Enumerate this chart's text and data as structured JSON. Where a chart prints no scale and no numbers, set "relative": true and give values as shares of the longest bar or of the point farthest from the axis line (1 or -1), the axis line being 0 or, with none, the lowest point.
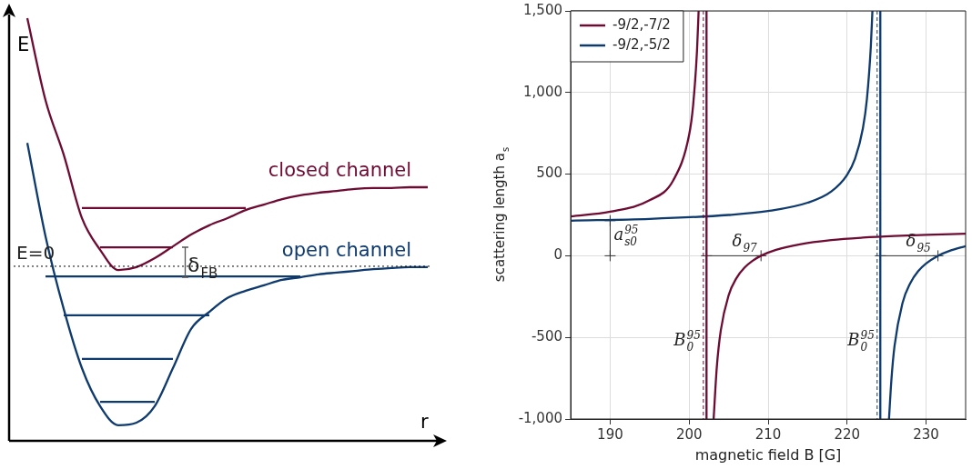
{
  "chart_data": [
    {
      "type": "line",
      "relative": true,
      "xlabel": "r",
      "ylabel": "E",
      "legend": false,
      "categories": [
        null,
        null,
        null,
        null,
        null,
        null,
        null,
        null,
        null,
        null,
        null,
        null,
        null,
        null,
        null,
        null,
        null,
        null,
        null,
        null,
        null,
        null,
        null,
        null,
        null
      ],
      "series": [
        {
          "name": "closed channel",
          "color": "#6e0b32",
          "values": [
            null,
            1.0,
            0.806,
            0.677,
            0.527,
            0.452,
            0.404,
            0.411,
            0.432,
            0.46,
            0.488,
            0.51,
            0.527,
            0.546,
            0.559,
            0.572,
            0.581,
            0.587,
            0.591,
            0.596,
            0.598,
            0.598,
            0.6,
            0.6,
            null
          ]
        },
        {
          "name": "open channel",
          "color": "#0e3a6e",
          "values": [
            null,
            0.705,
            0.484,
            0.312,
            0.172,
            0.082,
            0.037,
            0.043,
            0.082,
            0.172,
            0.265,
            0.305,
            0.338,
            0.355,
            0.368,
            0.381,
            0.387,
            0.394,
            0.398,
            0.402,
            0.406,
            0.409,
            0.411,
            0.411,
            null
          ]
        },
        {
          "color": "#6e0b32",
          "values": [
            null,
            null,
            null,
            null,
            0.551,
            0.551,
            0.551,
            0.551,
            0.551,
            0.551,
            0.551,
            0.551,
            0.551,
            0.551,
            null,
            null,
            null,
            null,
            null,
            null,
            null,
            null,
            null,
            null,
            null
          ]
        },
        {
          "color": "#6e0b32",
          "values": [
            null,
            null,
            null,
            null,
            null,
            0.458,
            0.458,
            0.458,
            0.458,
            0.458,
            null,
            null,
            null,
            null,
            null,
            null,
            null,
            null,
            null,
            null,
            null,
            null,
            null,
            null,
            null
          ]
        },
        {
          "color": "#0e3a6e",
          "values": [
            null,
            null,
            0.389,
            0.389,
            0.389,
            0.389,
            0.389,
            0.389,
            0.389,
            0.389,
            0.389,
            0.389,
            0.389,
            0.389,
            0.389,
            0.389,
            0.389,
            null,
            null,
            null,
            null,
            null,
            null,
            null,
            null
          ]
        },
        {
          "color": "#0e3a6e",
          "values": [
            null,
            null,
            null,
            0.297,
            0.297,
            0.297,
            0.297,
            0.297,
            0.297,
            0.297,
            0.297,
            0.297,
            null,
            null,
            null,
            null,
            null,
            null,
            null,
            null,
            null,
            null,
            null,
            null,
            null
          ]
        },
        {
          "color": "#0e3a6e",
          "values": [
            null,
            null,
            null,
            null,
            0.194,
            0.194,
            0.194,
            0.194,
            0.194,
            0.194,
            null,
            null,
            null,
            null,
            null,
            null,
            null,
            null,
            null,
            null,
            null,
            null,
            null,
            null,
            null
          ]
        },
        {
          "color": "#0e3a6e",
          "values": [
            null,
            null,
            null,
            null,
            null,
            0.092,
            0.092,
            0.092,
            0.092,
            null,
            null,
            null,
            null,
            null,
            null,
            null,
            null,
            null,
            null,
            null,
            null,
            null,
            null,
            null,
            null
          ]
        }
      ],
      "ref_lines": [
        {
          "axis": "y",
          "value": 0.413,
          "label": "E=0",
          "color": "#000000",
          "line_style": "dotted"
        }
      ],
      "annotations": [
        "δ$_{FB}$"
      ]
    },
    {
      "type": "line",
      "xlabel": "magnetic field B [G]",
      "ylabel": "scattering length a$_{s}$",
      "legend": "top left",
      "grid": true,
      "xlim": [
        185,
        235
      ],
      "xticks": [
        190,
        200,
        210,
        220,
        230
      ],
      "ylim": [
        -1000,
        1500
      ],
      "yticks": [
        {
          "value": -1000,
          "label": "-1,000"
        },
        -500,
        0,
        500,
        {
          "value": 1000,
          "label": "1,000"
        },
        {
          "value": 1500,
          "label": "1,500"
        }
      ],
      "series": [
        {
          "name": "-9/2,-7/2",
          "color": "#6e0b32",
          "x": [
            185,
            190,
            195,
            198,
            200,
            200.5,
            201,
            201.2,
            201.7,
            202.2,
            202.2,
            202.6,
            203.1,
            203.5,
            204,
            205,
            206,
            207,
            208,
            209.1,
            211,
            214,
            218,
            222,
            226,
            230,
            235
          ],
          "values": [
            241,
            270,
            340,
            463,
            741,
            919,
            1259,
            1500,
            null,
            1500,
            -1000,
            null,
            -1000,
            -684,
            -459,
            -242,
            -136,
            -73,
            -32,
            0,
            36,
            70,
            96,
            111,
            121,
            128,
            135
          ]
        },
        {
          "name": "-9/2,-5/2",
          "color": "#0e3a6e",
          "x": [
            185,
            195,
            205,
            210,
            215,
            218,
            220,
            221,
            222,
            222.5,
            223,
            223.2,
            223.7,
            224.2,
            224.2,
            224.7,
            225.3,
            225.6,
            226,
            227,
            228,
            229,
            230,
            231.5,
            233,
            235
          ],
          "values": [
            215,
            226,
            250,
            274,
            325,
            394,
            496,
            594,
            782,
            958,
            1282,
            1500,
            null,
            1500,
            -1000,
            null,
            -1000,
            -763,
            -553,
            -291,
            -167,
            -94,
            -47,
            0,
            31,
            59
          ]
        },
        {
          "color": "#333333",
          "marker": "cross",
          "x": [
            190,
            190
          ],
          "values": [
            0,
            215
          ]
        },
        {
          "color": "#333333",
          "marker": "cross",
          "x": [
            202.2,
            209.1
          ],
          "values": [
            0,
            0
          ]
        },
        {
          "color": "#333333",
          "marker": "cross",
          "x": [
            224.2,
            231.5
          ],
          "values": [
            0,
            0
          ]
        }
      ],
      "ref_lines": [
        {
          "axis": "x",
          "value": 201.8,
          "label": "B$_{0}$$^{95}$",
          "color": "#6e0b32",
          "line_style": "dashed"
        },
        {
          "axis": "x",
          "value": 223.8,
          "label": "B$_{0}$$^{95}$",
          "color": "#0e3a6e",
          "line_style": "dashed"
        }
      ],
      "annotations": [
        {
          "text": "a$_{s0}$$^{95}$",
          "x": 190,
          "y": 40
        },
        {
          "text": "δ$_{97}$",
          "x": 205,
          "y": 0
        },
        {
          "text": "δ$_{95}$",
          "x": 227,
          "y": 0
        }
      ]
    }
  ]
}
